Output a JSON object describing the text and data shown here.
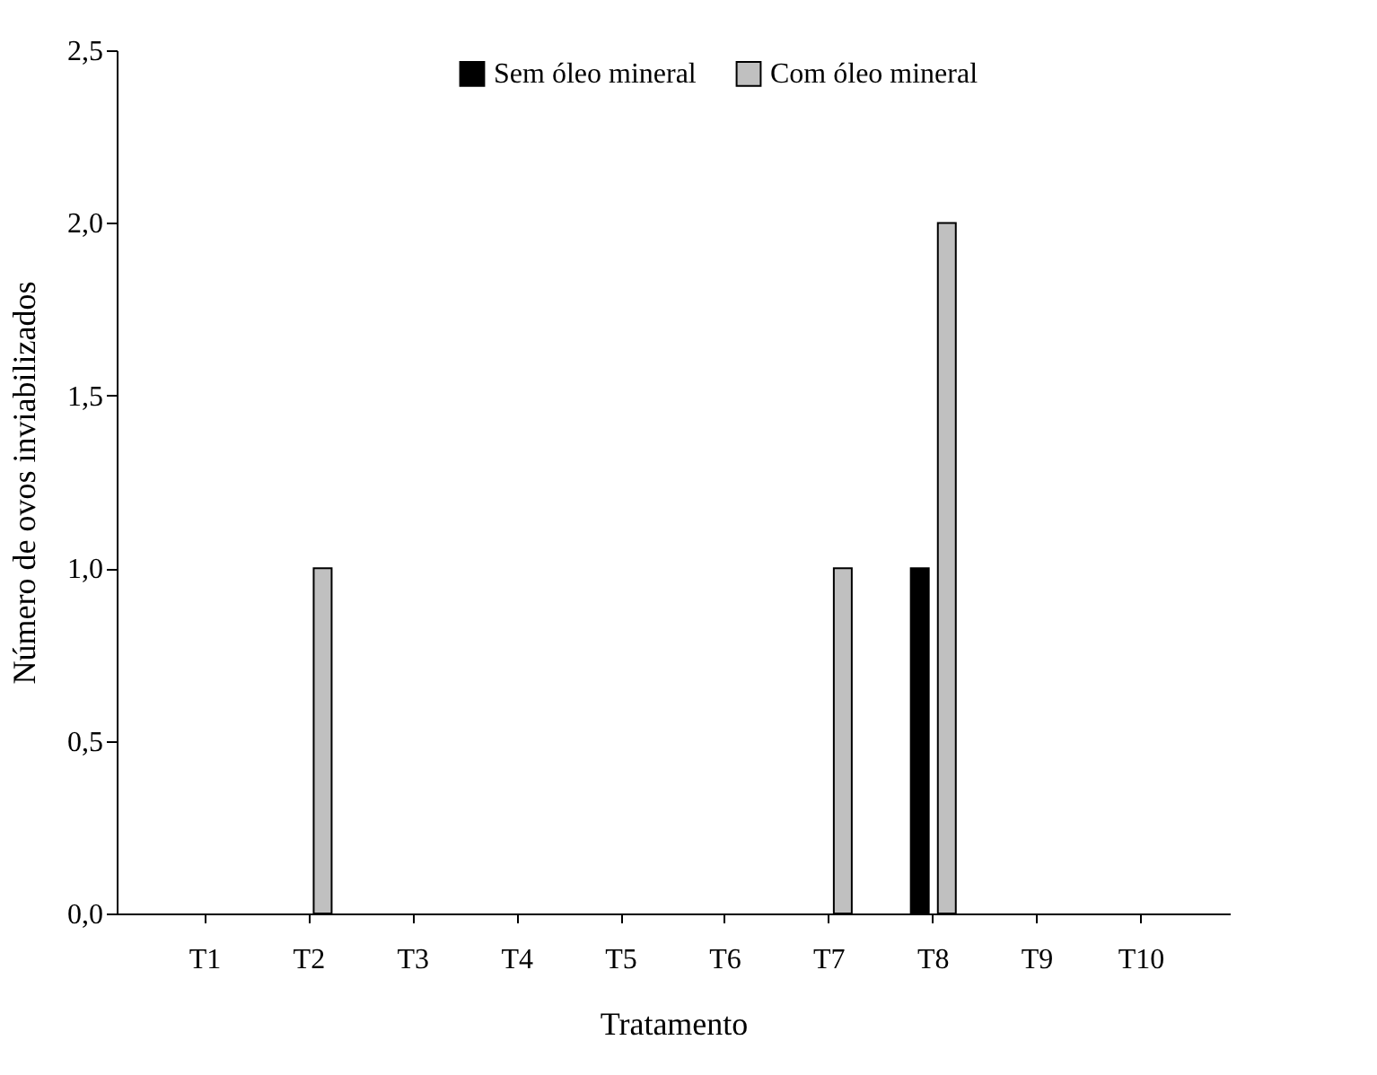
{
  "chart_data": {
    "type": "bar",
    "xlabel": "Tratamento",
    "ylabel": "Número de ovos inviabilizados",
    "categories": [
      "T1",
      "T2",
      "T3",
      "T4",
      "T5",
      "T6",
      "T7",
      "T8",
      "T9",
      "T10"
    ],
    "series": [
      {
        "name": "Sem óleo mineral",
        "color": "#000000",
        "values": [
          0,
          0,
          0,
          0,
          0,
          0,
          0,
          1,
          0,
          0
        ]
      },
      {
        "name": "Com óleo mineral",
        "color": "#c0c0c0",
        "values": [
          0,
          1,
          0,
          0,
          0,
          0,
          1,
          2,
          0,
          0
        ]
      }
    ],
    "ylim": [
      0,
      2.5
    ],
    "yticks": [
      {
        "value": 0,
        "label": "0,0"
      },
      {
        "value": 0.5,
        "label": "0,5"
      },
      {
        "value": 1,
        "label": "1,0"
      },
      {
        "value": 1.5,
        "label": "1,5"
      },
      {
        "value": 2,
        "label": "2,0"
      },
      {
        "value": 2.5,
        "label": "2,5"
      }
    ],
    "grid": false,
    "legend": "top"
  }
}
